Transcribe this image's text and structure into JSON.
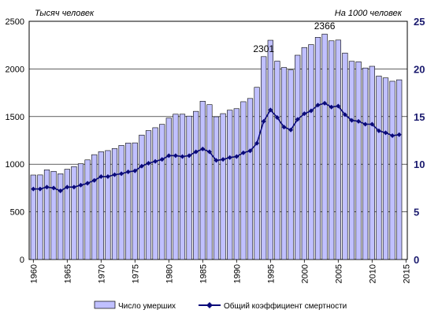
{
  "chart_data": {
    "type": "bar",
    "left_axis_title": "Тысяч человек",
    "right_axis_title": "На 1000 человек",
    "left_ylim": [
      0,
      2500
    ],
    "left_ticks": [
      0,
      500,
      1000,
      1500,
      2000,
      2500
    ],
    "right_ylim": [
      0,
      25
    ],
    "right_ticks": [
      0,
      5,
      10,
      15,
      20,
      25
    ],
    "x_ticks": [
      1960,
      1965,
      1970,
      1975,
      1980,
      1985,
      1990,
      1995,
      2000,
      2005,
      2010,
      2015
    ],
    "x": [
      1960,
      1961,
      1962,
      1963,
      1964,
      1965,
      1966,
      1967,
      1968,
      1969,
      1970,
      1971,
      1972,
      1973,
      1974,
      1975,
      1976,
      1977,
      1978,
      1979,
      1980,
      1981,
      1982,
      1983,
      1984,
      1985,
      1986,
      1987,
      1988,
      1989,
      1990,
      1991,
      1992,
      1993,
      1994,
      1995,
      1996,
      1997,
      1998,
      1999,
      2000,
      2001,
      2002,
      2003,
      2004,
      2005,
      2006,
      2007,
      2008,
      2009,
      2010,
      2011,
      2012,
      2013,
      2014
    ],
    "series": [
      {
        "name": "Число умерших",
        "kind": "bar",
        "axis": "left",
        "color": "#c0c0ff",
        "values": [
          886,
          887,
          941,
          925,
          900,
          947,
          975,
          1005,
          1045,
          1100,
          1131,
          1143,
          1164,
          1197,
          1222,
          1224,
          1306,
          1353,
          1383,
          1418,
          1484,
          1525,
          1525,
          1505,
          1555,
          1661,
          1625,
          1498,
          1531,
          1567,
          1583,
          1656,
          1690,
          1807,
          2129,
          2301,
          2082,
          2015,
          1989,
          2144,
          2225,
          2255,
          2332,
          2366,
          2295,
          2303,
          2167,
          2080,
          2075,
          2010,
          2028,
          1925,
          1906,
          1871,
          1886
        ]
      },
      {
        "name": "Общий коэффициент смертности",
        "kind": "line",
        "axis": "right",
        "color": "#0a0a7a",
        "values": [
          7.4,
          7.4,
          7.6,
          7.5,
          7.2,
          7.6,
          7.6,
          7.8,
          8.0,
          8.3,
          8.7,
          8.7,
          8.9,
          9.0,
          9.2,
          9.3,
          9.8,
          10.1,
          10.3,
          10.5,
          10.9,
          10.9,
          10.8,
          10.9,
          11.3,
          11.6,
          11.3,
          10.4,
          10.5,
          10.7,
          10.8,
          11.2,
          11.4,
          12.2,
          14.5,
          15.7,
          14.9,
          13.9,
          13.6,
          14.7,
          15.3,
          15.6,
          16.2,
          16.4,
          16.0,
          16.1,
          15.2,
          14.6,
          14.5,
          14.2,
          14.2,
          13.5,
          13.3,
          13.0,
          13.1
        ]
      }
    ],
    "annotations": [
      {
        "label": "2301",
        "x": 1994
      },
      {
        "label": "2366",
        "x": 2003
      }
    ],
    "legend_position": "bottom"
  }
}
